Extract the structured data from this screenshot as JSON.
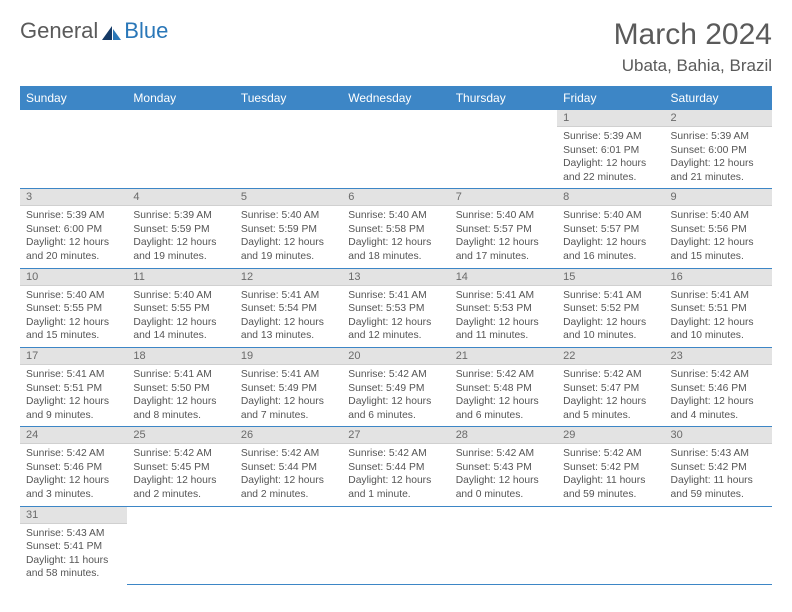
{
  "logo": {
    "part1": "General",
    "part2": "Blue"
  },
  "title": "March 2024",
  "location": "Ubata, Bahia, Brazil",
  "dayHeaders": [
    "Sunday",
    "Monday",
    "Tuesday",
    "Wednesday",
    "Thursday",
    "Friday",
    "Saturday"
  ],
  "colors": {
    "headerBg": "#3d86c6",
    "dayNumBg": "#e3e3e3",
    "rowBorder": "#3d86c6",
    "logoBlue": "#2a77b8"
  },
  "typography": {
    "titleSize": 30,
    "locationSize": 17,
    "dayHeaderSize": 12,
    "dayNumSize": 11,
    "bodySize": 10.3
  },
  "weeks": [
    [
      null,
      null,
      null,
      null,
      null,
      {
        "n": "1",
        "sunrise": "Sunrise: 5:39 AM",
        "sunset": "Sunset: 6:01 PM",
        "day1": "Daylight: 12 hours",
        "day2": "and 22 minutes."
      },
      {
        "n": "2",
        "sunrise": "Sunrise: 5:39 AM",
        "sunset": "Sunset: 6:00 PM",
        "day1": "Daylight: 12 hours",
        "day2": "and 21 minutes."
      }
    ],
    [
      {
        "n": "3",
        "sunrise": "Sunrise: 5:39 AM",
        "sunset": "Sunset: 6:00 PM",
        "day1": "Daylight: 12 hours",
        "day2": "and 20 minutes."
      },
      {
        "n": "4",
        "sunrise": "Sunrise: 5:39 AM",
        "sunset": "Sunset: 5:59 PM",
        "day1": "Daylight: 12 hours",
        "day2": "and 19 minutes."
      },
      {
        "n": "5",
        "sunrise": "Sunrise: 5:40 AM",
        "sunset": "Sunset: 5:59 PM",
        "day1": "Daylight: 12 hours",
        "day2": "and 19 minutes."
      },
      {
        "n": "6",
        "sunrise": "Sunrise: 5:40 AM",
        "sunset": "Sunset: 5:58 PM",
        "day1": "Daylight: 12 hours",
        "day2": "and 18 minutes."
      },
      {
        "n": "7",
        "sunrise": "Sunrise: 5:40 AM",
        "sunset": "Sunset: 5:57 PM",
        "day1": "Daylight: 12 hours",
        "day2": "and 17 minutes."
      },
      {
        "n": "8",
        "sunrise": "Sunrise: 5:40 AM",
        "sunset": "Sunset: 5:57 PM",
        "day1": "Daylight: 12 hours",
        "day2": "and 16 minutes."
      },
      {
        "n": "9",
        "sunrise": "Sunrise: 5:40 AM",
        "sunset": "Sunset: 5:56 PM",
        "day1": "Daylight: 12 hours",
        "day2": "and 15 minutes."
      }
    ],
    [
      {
        "n": "10",
        "sunrise": "Sunrise: 5:40 AM",
        "sunset": "Sunset: 5:55 PM",
        "day1": "Daylight: 12 hours",
        "day2": "and 15 minutes."
      },
      {
        "n": "11",
        "sunrise": "Sunrise: 5:40 AM",
        "sunset": "Sunset: 5:55 PM",
        "day1": "Daylight: 12 hours",
        "day2": "and 14 minutes."
      },
      {
        "n": "12",
        "sunrise": "Sunrise: 5:41 AM",
        "sunset": "Sunset: 5:54 PM",
        "day1": "Daylight: 12 hours",
        "day2": "and 13 minutes."
      },
      {
        "n": "13",
        "sunrise": "Sunrise: 5:41 AM",
        "sunset": "Sunset: 5:53 PM",
        "day1": "Daylight: 12 hours",
        "day2": "and 12 minutes."
      },
      {
        "n": "14",
        "sunrise": "Sunrise: 5:41 AM",
        "sunset": "Sunset: 5:53 PM",
        "day1": "Daylight: 12 hours",
        "day2": "and 11 minutes."
      },
      {
        "n": "15",
        "sunrise": "Sunrise: 5:41 AM",
        "sunset": "Sunset: 5:52 PM",
        "day1": "Daylight: 12 hours",
        "day2": "and 10 minutes."
      },
      {
        "n": "16",
        "sunrise": "Sunrise: 5:41 AM",
        "sunset": "Sunset: 5:51 PM",
        "day1": "Daylight: 12 hours",
        "day2": "and 10 minutes."
      }
    ],
    [
      {
        "n": "17",
        "sunrise": "Sunrise: 5:41 AM",
        "sunset": "Sunset: 5:51 PM",
        "day1": "Daylight: 12 hours",
        "day2": "and 9 minutes."
      },
      {
        "n": "18",
        "sunrise": "Sunrise: 5:41 AM",
        "sunset": "Sunset: 5:50 PM",
        "day1": "Daylight: 12 hours",
        "day2": "and 8 minutes."
      },
      {
        "n": "19",
        "sunrise": "Sunrise: 5:41 AM",
        "sunset": "Sunset: 5:49 PM",
        "day1": "Daylight: 12 hours",
        "day2": "and 7 minutes."
      },
      {
        "n": "20",
        "sunrise": "Sunrise: 5:42 AM",
        "sunset": "Sunset: 5:49 PM",
        "day1": "Daylight: 12 hours",
        "day2": "and 6 minutes."
      },
      {
        "n": "21",
        "sunrise": "Sunrise: 5:42 AM",
        "sunset": "Sunset: 5:48 PM",
        "day1": "Daylight: 12 hours",
        "day2": "and 6 minutes."
      },
      {
        "n": "22",
        "sunrise": "Sunrise: 5:42 AM",
        "sunset": "Sunset: 5:47 PM",
        "day1": "Daylight: 12 hours",
        "day2": "and 5 minutes."
      },
      {
        "n": "23",
        "sunrise": "Sunrise: 5:42 AM",
        "sunset": "Sunset: 5:46 PM",
        "day1": "Daylight: 12 hours",
        "day2": "and 4 minutes."
      }
    ],
    [
      {
        "n": "24",
        "sunrise": "Sunrise: 5:42 AM",
        "sunset": "Sunset: 5:46 PM",
        "day1": "Daylight: 12 hours",
        "day2": "and 3 minutes."
      },
      {
        "n": "25",
        "sunrise": "Sunrise: 5:42 AM",
        "sunset": "Sunset: 5:45 PM",
        "day1": "Daylight: 12 hours",
        "day2": "and 2 minutes."
      },
      {
        "n": "26",
        "sunrise": "Sunrise: 5:42 AM",
        "sunset": "Sunset: 5:44 PM",
        "day1": "Daylight: 12 hours",
        "day2": "and 2 minutes."
      },
      {
        "n": "27",
        "sunrise": "Sunrise: 5:42 AM",
        "sunset": "Sunset: 5:44 PM",
        "day1": "Daylight: 12 hours",
        "day2": "and 1 minute."
      },
      {
        "n": "28",
        "sunrise": "Sunrise: 5:42 AM",
        "sunset": "Sunset: 5:43 PM",
        "day1": "Daylight: 12 hours",
        "day2": "and 0 minutes."
      },
      {
        "n": "29",
        "sunrise": "Sunrise: 5:42 AM",
        "sunset": "Sunset: 5:42 PM",
        "day1": "Daylight: 11 hours",
        "day2": "and 59 minutes."
      },
      {
        "n": "30",
        "sunrise": "Sunrise: 5:43 AM",
        "sunset": "Sunset: 5:42 PM",
        "day1": "Daylight: 11 hours",
        "day2": "and 59 minutes."
      }
    ],
    [
      {
        "n": "31",
        "sunrise": "Sunrise: 5:43 AM",
        "sunset": "Sunset: 5:41 PM",
        "day1": "Daylight: 11 hours",
        "day2": "and 58 minutes."
      },
      null,
      null,
      null,
      null,
      null,
      null
    ]
  ]
}
